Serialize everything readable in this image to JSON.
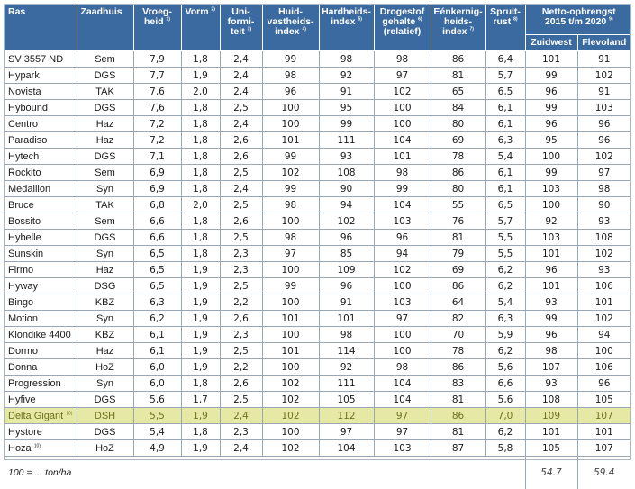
{
  "headers": {
    "ras": "Ras",
    "zaadhuis": "Zaadhuis",
    "vroegheid": [
      "Vroeg-",
      "heid"
    ],
    "vroegheid_note": "1)",
    "vorm": "Vorm",
    "vorm_note": "2)",
    "uniformiteit": [
      "Uni-",
      "formi-",
      "teit"
    ],
    "uniformiteit_note": "3)",
    "huidvastheid": [
      "Huid-",
      "vastheids-",
      "index"
    ],
    "huidvastheid_note": "4)",
    "hardheid": [
      "Hardheids-",
      "index"
    ],
    "hardheid_note": "5)",
    "drogestof": [
      "Drogestof",
      "gehalte",
      "(relatief)"
    ],
    "drogestof_note": "6)",
    "eenknol": [
      "Eénkernig-",
      "heids-",
      "index"
    ],
    "eenknol_note": "7)",
    "spruit": [
      "Spruit-",
      "rust"
    ],
    "spruit_note": "8)",
    "netto": [
      "Netto-opbrengst",
      "2015 t/m 2020"
    ],
    "netto_note": "9)",
    "zuidwest": "Zuidwest",
    "flevoland": "Flevoland"
  },
  "rows": [
    {
      "ras": "SV 3557 ND",
      "note": "",
      "zaadhuis": "Sem",
      "vroegheid": "7,9",
      "vorm": "1,8",
      "uniformiteit": "2,4",
      "huidvastheid": "99",
      "hardheid": "98",
      "drogestof": "98",
      "eenknol": "86",
      "spruit": "6,4",
      "zuidwest": "101",
      "flevoland": "91",
      "highlight": false
    },
    {
      "ras": "Hypark",
      "note": "",
      "zaadhuis": "DGS",
      "vroegheid": "7,7",
      "vorm": "1,9",
      "uniformiteit": "2,4",
      "huidvastheid": "98",
      "hardheid": "92",
      "drogestof": "97",
      "eenknol": "81",
      "spruit": "5,7",
      "zuidwest": "99",
      "flevoland": "102",
      "highlight": false
    },
    {
      "ras": "Novista",
      "note": "",
      "zaadhuis": "TAK",
      "vroegheid": "7,6",
      "vorm": "2,0",
      "uniformiteit": "2,4",
      "huidvastheid": "96",
      "hardheid": "91",
      "drogestof": "102",
      "eenknol": "65",
      "spruit": "6,5",
      "zuidwest": "96",
      "flevoland": "91",
      "highlight": false
    },
    {
      "ras": "Hybound",
      "note": "",
      "zaadhuis": "DGS",
      "vroegheid": "7,6",
      "vorm": "1,8",
      "uniformiteit": "2,5",
      "huidvastheid": "100",
      "hardheid": "95",
      "drogestof": "100",
      "eenknol": "84",
      "spruit": "6,1",
      "zuidwest": "99",
      "flevoland": "103",
      "highlight": false
    },
    {
      "ras": "Centro",
      "note": "",
      "zaadhuis": "Haz",
      "vroegheid": "7,2",
      "vorm": "1,8",
      "uniformiteit": "2,4",
      "huidvastheid": "100",
      "hardheid": "99",
      "drogestof": "100",
      "eenknol": "80",
      "spruit": "6,1",
      "zuidwest": "96",
      "flevoland": "96",
      "highlight": false
    },
    {
      "ras": "Paradiso",
      "note": "",
      "zaadhuis": "Haz",
      "vroegheid": "7,2",
      "vorm": "1,8",
      "uniformiteit": "2,6",
      "huidvastheid": "101",
      "hardheid": "111",
      "drogestof": "104",
      "eenknol": "69",
      "spruit": "6,3",
      "zuidwest": "95",
      "flevoland": "96",
      "highlight": false
    },
    {
      "ras": "Hytech",
      "note": "",
      "zaadhuis": "DGS",
      "vroegheid": "7,1",
      "vorm": "1,8",
      "uniformiteit": "2,6",
      "huidvastheid": "99",
      "hardheid": "93",
      "drogestof": "101",
      "eenknol": "78",
      "spruit": "5,4",
      "zuidwest": "100",
      "flevoland": "102",
      "highlight": false
    },
    {
      "ras": "Rockito",
      "note": "",
      "zaadhuis": "Sem",
      "vroegheid": "6,9",
      "vorm": "1,8",
      "uniformiteit": "2,5",
      "huidvastheid": "102",
      "hardheid": "108",
      "drogestof": "98",
      "eenknol": "86",
      "spruit": "6,1",
      "zuidwest": "99",
      "flevoland": "97",
      "highlight": false
    },
    {
      "ras": "Medaillon",
      "note": "",
      "zaadhuis": "Syn",
      "vroegheid": "6,9",
      "vorm": "1,8",
      "uniformiteit": "2,4",
      "huidvastheid": "99",
      "hardheid": "90",
      "drogestof": "99",
      "eenknol": "80",
      "spruit": "6,1",
      "zuidwest": "103",
      "flevoland": "98",
      "highlight": false
    },
    {
      "ras": "Bruce",
      "note": "",
      "zaadhuis": "TAK",
      "vroegheid": "6,8",
      "vorm": "2,0",
      "uniformiteit": "2,5",
      "huidvastheid": "98",
      "hardheid": "94",
      "drogestof": "104",
      "eenknol": "55",
      "spruit": "6,5",
      "zuidwest": "100",
      "flevoland": "90",
      "highlight": false
    },
    {
      "ras": "Bossito",
      "note": "",
      "zaadhuis": "Sem",
      "vroegheid": "6,6",
      "vorm": "1,8",
      "uniformiteit": "2,6",
      "huidvastheid": "100",
      "hardheid": "102",
      "drogestof": "103",
      "eenknol": "76",
      "spruit": "5,7",
      "zuidwest": "92",
      "flevoland": "93",
      "highlight": false
    },
    {
      "ras": "Hybelle",
      "note": "",
      "zaadhuis": "DGS",
      "vroegheid": "6,6",
      "vorm": "1,8",
      "uniformiteit": "2,5",
      "huidvastheid": "98",
      "hardheid": "96",
      "drogestof": "96",
      "eenknol": "81",
      "spruit": "5,5",
      "zuidwest": "103",
      "flevoland": "108",
      "highlight": false
    },
    {
      "ras": "Sunskin",
      "note": "",
      "zaadhuis": "Syn",
      "vroegheid": "6,5",
      "vorm": "1,8",
      "uniformiteit": "2,3",
      "huidvastheid": "97",
      "hardheid": "85",
      "drogestof": "94",
      "eenknol": "79",
      "spruit": "5,5",
      "zuidwest": "101",
      "flevoland": "102",
      "highlight": false
    },
    {
      "ras": "Firmo",
      "note": "",
      "zaadhuis": "Haz",
      "vroegheid": "6,5",
      "vorm": "1,9",
      "uniformiteit": "2,3",
      "huidvastheid": "100",
      "hardheid": "109",
      "drogestof": "102",
      "eenknol": "69",
      "spruit": "6,2",
      "zuidwest": "96",
      "flevoland": "93",
      "highlight": false
    },
    {
      "ras": "Hyway",
      "note": "",
      "zaadhuis": "DSG",
      "vroegheid": "6,5",
      "vorm": "1,9",
      "uniformiteit": "2,5",
      "huidvastheid": "99",
      "hardheid": "96",
      "drogestof": "100",
      "eenknol": "86",
      "spruit": "6,2",
      "zuidwest": "101",
      "flevoland": "106",
      "highlight": false
    },
    {
      "ras": "Bingo",
      "note": "",
      "zaadhuis": "KBZ",
      "vroegheid": "6,3",
      "vorm": "1,9",
      "uniformiteit": "2,2",
      "huidvastheid": "100",
      "hardheid": "91",
      "drogestof": "103",
      "eenknol": "64",
      "spruit": "5,4",
      "zuidwest": "93",
      "flevoland": "101",
      "highlight": false
    },
    {
      "ras": "Motion",
      "note": "",
      "zaadhuis": "Syn",
      "vroegheid": "6,2",
      "vorm": "1,9",
      "uniformiteit": "2,6",
      "huidvastheid": "101",
      "hardheid": "101",
      "drogestof": "97",
      "eenknol": "82",
      "spruit": "6,3",
      "zuidwest": "99",
      "flevoland": "102",
      "highlight": false
    },
    {
      "ras": "Klondike 4400",
      "note": "",
      "zaadhuis": "KBZ",
      "vroegheid": "6,1",
      "vorm": "1,9",
      "uniformiteit": "2,3",
      "huidvastheid": "100",
      "hardheid": "98",
      "drogestof": "100",
      "eenknol": "70",
      "spruit": "5,9",
      "zuidwest": "96",
      "flevoland": "94",
      "highlight": false
    },
    {
      "ras": "Dormo",
      "note": "",
      "zaadhuis": "Haz",
      "vroegheid": "6,1",
      "vorm": "1,9",
      "uniformiteit": "2,5",
      "huidvastheid": "101",
      "hardheid": "114",
      "drogestof": "100",
      "eenknol": "78",
      "spruit": "6,2",
      "zuidwest": "98",
      "flevoland": "100",
      "highlight": false
    },
    {
      "ras": "Donna",
      "note": "",
      "zaadhuis": "HoZ",
      "vroegheid": "6,0",
      "vorm": "1,9",
      "uniformiteit": "2,2",
      "huidvastheid": "100",
      "hardheid": "92",
      "drogestof": "98",
      "eenknol": "86",
      "spruit": "5,6",
      "zuidwest": "107",
      "flevoland": "106",
      "highlight": false
    },
    {
      "ras": "Progression",
      "note": "",
      "zaadhuis": "Syn",
      "vroegheid": "6,0",
      "vorm": "1,8",
      "uniformiteit": "2,6",
      "huidvastheid": "102",
      "hardheid": "111",
      "drogestof": "104",
      "eenknol": "83",
      "spruit": "6,6",
      "zuidwest": "93",
      "flevoland": "96",
      "highlight": false
    },
    {
      "ras": "Hyfive",
      "note": "",
      "zaadhuis": "DGS",
      "vroegheid": "5,6",
      "vorm": "1,7",
      "uniformiteit": "2,5",
      "huidvastheid": "102",
      "hardheid": "105",
      "drogestof": "104",
      "eenknol": "81",
      "spruit": "5,6",
      "zuidwest": "108",
      "flevoland": "105",
      "highlight": false
    },
    {
      "ras": "Delta Gigant",
      "note": "10)",
      "zaadhuis": "DSH",
      "vroegheid": "5,5",
      "vorm": "1,9",
      "uniformiteit": "2,4",
      "huidvastheid": "102",
      "hardheid": "112",
      "drogestof": "97",
      "eenknol": "86",
      "spruit": "7,0",
      "zuidwest": "109",
      "flevoland": "107",
      "highlight": true
    },
    {
      "ras": "Hystore",
      "note": "",
      "zaadhuis": "DGS",
      "vroegheid": "5,4",
      "vorm": "1,8",
      "uniformiteit": "2,3",
      "huidvastheid": "100",
      "hardheid": "97",
      "drogestof": "97",
      "eenknol": "81",
      "spruit": "6,2",
      "zuidwest": "101",
      "flevoland": "101",
      "highlight": false
    },
    {
      "ras": "Hoza",
      "note": "10)",
      "zaadhuis": "HoZ",
      "vroegheid": "4,9",
      "vorm": "1,9",
      "uniformiteit": "2,4",
      "huidvastheid": "102",
      "hardheid": "104",
      "drogestof": "103",
      "eenknol": "87",
      "spruit": "5,8",
      "zuidwest": "105",
      "flevoland": "107",
      "highlight": false
    }
  ],
  "footer": {
    "note": "100 = ... ton/ha",
    "zuidwest": "54.7",
    "flevoland": "59.4"
  },
  "colors": {
    "header_bg": "#3b6aa0",
    "highlight_bg": "#e6e8a6"
  }
}
